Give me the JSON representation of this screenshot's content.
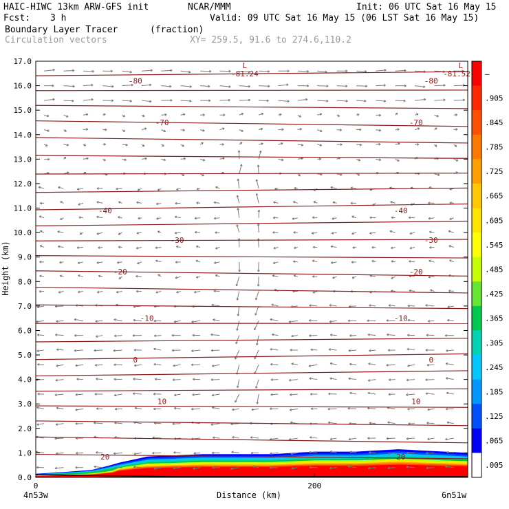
{
  "header": {
    "model": "HAIC-HIWC 13km ARW-GFS init",
    "org": "NCAR/MMM",
    "init": "Init: 06 UTC Sat 16 May 15",
    "fcst_label": "Fcst:",
    "fcst_value": "3 h",
    "valid": "Valid: 09 UTC Sat 16 May 15 (06 LST Sat 16 May 15)",
    "field1": "Boundary Layer Tracer",
    "field1_units": "(fraction)",
    "field2": "Circulation vectors",
    "xy": "XY= 259.5, 91.6 to 274.6,110.2"
  },
  "colors": {
    "contour": "#8b1a1a",
    "vector": "#7a7a7a",
    "frame": "#000000",
    "ground": "#000000"
  },
  "chart_data": {
    "type": "heatmap",
    "title": "Boundary Layer Tracer",
    "units": "(fraction)",
    "xlabel": "Distance (km)",
    "ylabel": "Height (km)",
    "xlim": [
      0,
      310
    ],
    "ylim": [
      0,
      17
    ],
    "x_ticks": [
      "0",
      "200"
    ],
    "x_end_labels": [
      "4n53w",
      "6n51w"
    ],
    "y_ticks": [
      "0.0",
      "1.0",
      "2.0",
      "3.0",
      "4.0",
      "5.0",
      "6.0",
      "7.0",
      "8.0",
      "9.0",
      "10.0",
      "11.0",
      "12.0",
      "13.0",
      "14.0",
      "15.0",
      "16.0",
      "17.0"
    ],
    "colorbar": {
      "labels": [
        "–",
        ".905",
        ".845",
        ".785",
        ".725",
        ".665",
        ".605",
        ".545",
        ".485",
        ".425",
        ".365",
        ".305",
        ".245",
        ".185",
        ".125",
        ".065",
        ".005"
      ],
      "colors": [
        "#ff0000",
        "#ff2800",
        "#ff5000",
        "#ff7800",
        "#ffa000",
        "#ffc800",
        "#ffe600",
        "#ffff00",
        "#c8ff00",
        "#64e632",
        "#00c850",
        "#00d2b4",
        "#00c8ff",
        "#0096ff",
        "#0050ff",
        "#0000ff",
        "#ffffff"
      ]
    },
    "tracer_top_km": [
      [
        0,
        0.25
      ],
      [
        40,
        0.35
      ],
      [
        60,
        0.6
      ],
      [
        80,
        0.85
      ],
      [
        120,
        0.95
      ],
      [
        170,
        0.95
      ],
      [
        200,
        1.05
      ],
      [
        230,
        1.05
      ],
      [
        260,
        1.15
      ],
      [
        310,
        1.0
      ]
    ],
    "temperature_contours": [
      {
        "label": "20",
        "y_km": 0.85
      },
      {
        "label": "10",
        "y_km": 3.1
      },
      {
        "label": "0",
        "y_km": 4.8
      },
      {
        "label": "-10",
        "y_km": 6.5
      },
      {
        "label": "-20",
        "y_km": 8.4
      },
      {
        "label": "-30",
        "y_km": 9.7
      },
      {
        "label": "-40",
        "y_km": 10.9
      },
      {
        "label": "-70",
        "y_km": 14.5
      },
      {
        "label": "-80",
        "y_km": 16.2
      }
    ],
    "lows": [
      {
        "label": "L",
        "value": "-81.24",
        "x_km": 150
      },
      {
        "label": "L",
        "value": "-81.52",
        "x_km": 305
      }
    ]
  }
}
